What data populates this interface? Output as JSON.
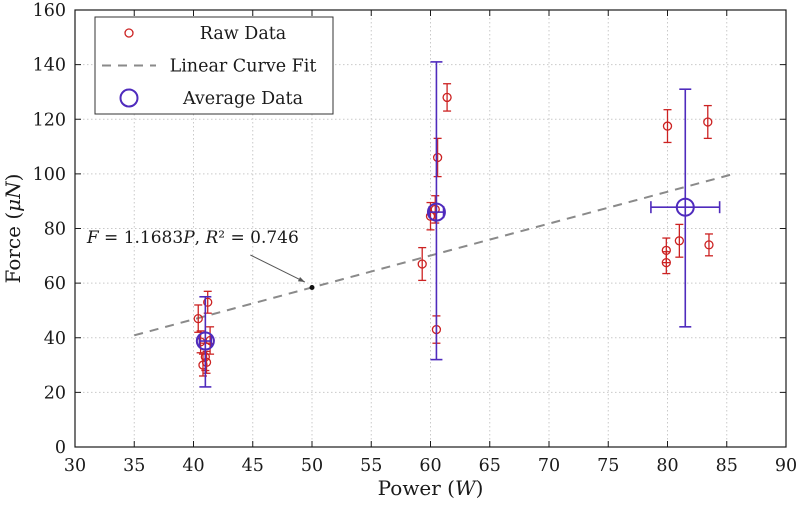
{
  "page": {
    "background": "#ffffff"
  },
  "chart_data": {
    "type": "scatter",
    "title": "",
    "xlabel": "Power (W)",
    "ylabel": "Force (μN)",
    "xlabel_parts": [
      {
        "t": "Power (",
        "i": false
      },
      {
        "t": "W",
        "i": true
      },
      {
        "t": ")",
        "i": false
      }
    ],
    "ylabel_parts": [
      {
        "t": "Force (",
        "i": false
      },
      {
        "t": "μN",
        "i": true
      },
      {
        "t": ")",
        "i": false
      }
    ],
    "xlim": [
      30,
      90
    ],
    "ylim": [
      0,
      160
    ],
    "xticks": [
      "30",
      "35",
      "40",
      "45",
      "50",
      "55",
      "60",
      "65",
      "70",
      "75",
      "80",
      "85",
      "90"
    ],
    "yticks": [
      "0",
      "20",
      "40",
      "60",
      "80",
      "100",
      "120",
      "140",
      "160"
    ],
    "grid": true,
    "legend_position": "top-left",
    "colors": {
      "raw": "#cc2222",
      "average": "#4f2bbd",
      "fit": "#8a8a8a",
      "grid": "#c9c9c9",
      "axis": "#1a1a1a",
      "annotation_arrow": "#555555"
    },
    "legend": [
      {
        "label": "Raw Data",
        "marker": "small-open-circle"
      },
      {
        "label": "Linear Curve Fit",
        "marker": "dashed-line"
      },
      {
        "label": "Average Data",
        "marker": "large-open-circle"
      }
    ],
    "fit_line": {
      "equation": "F = 1.1683P",
      "r_squared": "0.746",
      "slope": 1.1683,
      "intercept": 0,
      "x_start": 35,
      "x_end": 85.7
    },
    "annotation": {
      "text": "F = 1.1683P, R² = 0.746",
      "parts": [
        {
          "t": "F",
          "i": true
        },
        {
          "t": " = 1.1683",
          "i": false
        },
        {
          "t": "P",
          "i": true
        },
        {
          "t": ", ",
          "i": false
        },
        {
          "t": "R",
          "i": true
        },
        {
          "t": "² = 0.746",
          "i": false
        }
      ],
      "text_xy": [
        31.0,
        74.7
      ],
      "arrow_from": [
        44.8,
        70.3
      ],
      "arrow_to": [
        49.4,
        60.4
      ],
      "point_xy": [
        50,
        58.4
      ]
    },
    "raw_series": {
      "name": "Raw Data",
      "points": [
        {
          "x": 40.4,
          "y": 47.0,
          "yerr": 5.0
        },
        {
          "x": 41.2,
          "y": 53.0,
          "yerr": 4.0
        },
        {
          "x": 40.6,
          "y": 38.5,
          "yerr": 4.0
        },
        {
          "x": 41.4,
          "y": 39.0,
          "yerr": 5.0
        },
        {
          "x": 41.0,
          "y": 33.0,
          "yerr": 5.0
        },
        {
          "x": 41.1,
          "y": 31.0,
          "yerr": 4.0
        },
        {
          "x": 40.8,
          "y": 30.0,
          "yerr": 4.0
        },
        {
          "x": 59.3,
          "y": 67.0,
          "yerr": 6.0
        },
        {
          "x": 60.6,
          "y": 106.0,
          "yerr": 7.0
        },
        {
          "x": 61.4,
          "y": 128.0,
          "yerr": 5.0
        },
        {
          "x": 60.5,
          "y": 43.0,
          "yerr": 5.0
        },
        {
          "x": 60.0,
          "y": 84.5,
          "yerr": 5.0
        },
        {
          "x": 60.4,
          "y": 87.0,
          "yerr": 5.0
        },
        {
          "x": 80.0,
          "y": 117.5,
          "yerr": 6.0
        },
        {
          "x": 83.4,
          "y": 119.0,
          "yerr": 6.0
        },
        {
          "x": 79.9,
          "y": 72.0,
          "yerr": 4.5
        },
        {
          "x": 79.9,
          "y": 67.5,
          "yerr": 4.0
        },
        {
          "x": 81.0,
          "y": 75.5,
          "yerr": 6.0
        },
        {
          "x": 83.5,
          "y": 74.0,
          "yerr": 4.0
        }
      ]
    },
    "average_series": {
      "name": "Average Data",
      "points": [
        {
          "x": 41.0,
          "y": 38.8,
          "y_lo": 22.0,
          "y_hi": 55.0,
          "xerr": 0.5
        },
        {
          "x": 60.5,
          "y": 86.0,
          "y_lo": 32.0,
          "y_hi": 141.0,
          "xerr": 0.6
        },
        {
          "x": 81.5,
          "y": 87.8,
          "y_lo": 44.0,
          "y_hi": 131.0,
          "xerr": 2.9
        }
      ]
    }
  }
}
